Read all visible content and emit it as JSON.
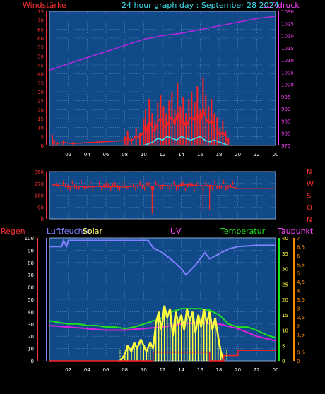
{
  "colors": {
    "background": "#000000",
    "plot_bg": "#114a88",
    "grid": "#6a8fc4",
    "frame": "#8fa8d0",
    "wind": "#ff2020",
    "gust": "#ff2020",
    "wind_low": "#40e0f0",
    "pressure": "#b428e0",
    "direction": "#ff2020",
    "rain": "#ff2020",
    "humidity": "#8080ff",
    "solar": "#ffff40",
    "uv": "#ffff40",
    "temperature": "#20e020",
    "dewpoint": "#e020e0",
    "red_tick": "#ff3030",
    "magenta_tick": "#ff40ff",
    "yellow_tick": "#ffff40"
  },
  "header": {
    "left_label": "Windstärke",
    "title": "24 hour graph day : September 28 2024",
    "right_label": "Luftdruck"
  },
  "x_ticks": [
    "02",
    "04",
    "06",
    "08",
    "10",
    "12",
    "14",
    "16",
    "18",
    "20",
    "22",
    "00"
  ],
  "chart_data": [
    {
      "type": "line",
      "panel": "wind_pressure",
      "y_left": {
        "label": "Windstärke",
        "ticks": [
          0,
          5,
          10,
          15,
          20,
          25,
          30,
          35,
          40,
          45,
          50,
          55,
          60,
          65,
          70,
          75
        ],
        "range": [
          0,
          75
        ]
      },
      "y_right": {
        "label": "Luftdruck",
        "ticks": [
          975,
          980,
          985,
          990,
          995,
          1000,
          1005,
          1010,
          1015,
          1020,
          1025,
          1030
        ],
        "range": [
          975,
          1030
        ]
      },
      "series": [
        {
          "name": "Luftdruck",
          "axis": "right",
          "x": [
            0,
            2,
            4,
            6,
            8,
            10,
            12,
            14,
            16,
            18,
            20,
            22,
            24
          ],
          "values": [
            1005.8,
            1008.5,
            1011,
            1013.5,
            1016,
            1018.5,
            1020,
            1021,
            1022.5,
            1024,
            1025.5,
            1027,
            1028
          ]
        },
        {
          "axis": "left",
          "style": "gust-spikes",
          "x": [
            0.3,
            0.5,
            0.8,
            1.5,
            2.5,
            8.0,
            8.3,
            8.7,
            9.2,
            9.6,
            10.0,
            10.2,
            10.4,
            10.6,
            10.9,
            11.2,
            11.5,
            11.8,
            12.1,
            12.4,
            12.7,
            13.0,
            13.3,
            13.6,
            13.9,
            14.2,
            14.5,
            14.8,
            15.1,
            15.4,
            15.7,
            16.0,
            16.3,
            16.6,
            16.9,
            17.2,
            17.5,
            17.8,
            18.1,
            18.4,
            18.7,
            19.0
          ],
          "values": [
            6,
            3,
            2,
            3,
            2,
            5,
            8,
            4,
            10,
            7,
            15,
            20,
            12,
            26,
            18,
            14,
            24,
            28,
            22,
            18,
            25,
            30,
            20,
            35,
            22,
            27,
            18,
            26,
            30,
            24,
            33,
            20,
            38,
            28,
            22,
            26,
            18,
            16,
            10,
            14,
            8,
            4
          ]
        },
        {
          "axis": "left",
          "style": "low-line",
          "x": [
            10.0,
            10.5,
            11,
            11.5,
            12,
            12.5,
            13,
            13.5,
            14,
            14.5,
            15,
            15.5,
            16,
            16.5,
            17,
            17.5,
            18,
            18.5,
            19
          ],
          "values": [
            0,
            1,
            2,
            4,
            3,
            5,
            4,
            3,
            5,
            4,
            3,
            4,
            5,
            3,
            2,
            3,
            2,
            1,
            0
          ]
        }
      ]
    },
    {
      "type": "line",
      "panel": "direction",
      "y_left": {
        "ticks": [
          0,
          90,
          180,
          270,
          360
        ],
        "range": [
          0,
          360
        ]
      },
      "y_right": {
        "ticks": [
          "N",
          "W",
          "S",
          "O",
          "N"
        ]
      },
      "series": [
        {
          "style": "direction",
          "x": [
            0.3,
            1,
            2,
            3,
            4,
            5,
            6,
            7,
            8,
            9,
            10,
            11,
            12,
            13,
            14,
            15,
            16,
            17,
            18,
            19,
            20,
            21,
            22,
            23,
            24
          ],
          "values": [
            260,
            255,
            245,
            250,
            240,
            248,
            242,
            245,
            240,
            250,
            252,
            248,
            255,
            250,
            258,
            260,
            250,
            255,
            248,
            250,
            230,
            230,
            230,
            230,
            230
          ]
        }
      ]
    },
    {
      "type": "line",
      "panel": "weather",
      "labels": {
        "regen": "Regen",
        "humidity": "Luftfeuchte",
        "solar": "Solar",
        "uv": "UV",
        "temperature": "Temperatur",
        "dewpoint": "Taupunkt"
      },
      "y_left": {
        "label": "Regen",
        "ticks": [
          0,
          10,
          20,
          30,
          40,
          50,
          60,
          70,
          80,
          90,
          100
        ],
        "range": [
          0,
          100
        ]
      },
      "y_right_temp": {
        "label": "Temperatur",
        "ticks": [
          0,
          5,
          10,
          15,
          20,
          25,
          30,
          35,
          40
        ],
        "range": [
          0,
          40
        ]
      },
      "y_right_uv": {
        "label": "UV",
        "ticks": [
          0,
          0.5,
          1,
          1.5,
          2,
          2.5,
          3,
          3.5,
          4,
          4.5,
          5,
          5.5,
          6,
          6.5,
          7
        ],
        "tick_labels": [
          "0",
          "0,5",
          "1",
          "1,5",
          "2",
          "2,5",
          "3",
          "3,5",
          "4",
          "4,5",
          "5",
          "5,5",
          "6",
          "6,5",
          "7"
        ],
        "range": [
          0,
          7
        ]
      },
      "series": [
        {
          "name": "Luftfeuchte",
          "axis": "left",
          "x": [
            0,
            1.3,
            1.5,
            1.8,
            2,
            4,
            6,
            8,
            10.5,
            11,
            12,
            13,
            14,
            14.5,
            15,
            15.5,
            16,
            16.5,
            17,
            18,
            19,
            20,
            22,
            24
          ],
          "values": [
            93,
            93,
            98,
            93,
            98,
            98,
            98,
            98,
            98,
            92,
            88,
            82,
            75,
            70,
            74,
            78,
            83,
            88,
            83,
            87,
            91,
            93,
            94,
            94
          ]
        },
        {
          "name": "Temperatur",
          "axis": "temp",
          "x": [
            0,
            1,
            2,
            3,
            4,
            5,
            6,
            7,
            8,
            9,
            10,
            11,
            12,
            13,
            14,
            15,
            16,
            17,
            18,
            19,
            20,
            21,
            22,
            23,
            24
          ],
          "values": [
            13,
            12.5,
            12,
            12,
            11.5,
            11.5,
            11,
            11,
            10.5,
            11,
            12,
            13,
            14,
            16,
            17,
            17,
            17,
            16.5,
            15,
            12,
            11,
            11,
            10,
            8.5,
            7.5
          ]
        },
        {
          "name": "Taupunkt",
          "axis": "temp",
          "x": [
            0,
            2,
            4,
            6,
            8,
            10,
            12,
            14,
            16,
            18,
            20,
            22,
            24
          ],
          "values": [
            11.5,
            11,
            10.5,
            10,
            10,
            10.5,
            11,
            12,
            12.5,
            12,
            10.5,
            8,
            6.5
          ]
        },
        {
          "name": "Solar",
          "axis": "temp",
          "style": "solar",
          "x": [
            7.5,
            8.0,
            8.3,
            8.7,
            9.0,
            9.3,
            9.7,
            10.0,
            10.3,
            10.7,
            11.0,
            11.3,
            11.6,
            11.9,
            12.2,
            12.5,
            12.8,
            13.1,
            13.4,
            13.7,
            14.0,
            14.3,
            14.6,
            14.9,
            15.2,
            15.5,
            15.8,
            16.1,
            16.4,
            16.7,
            17.0,
            17.3,
            17.6,
            17.9,
            18.2,
            18.5
          ],
          "values": [
            0,
            2,
            5,
            3,
            6,
            4,
            7,
            5,
            3,
            6,
            4,
            12,
            16,
            10,
            18,
            14,
            17,
            8,
            16,
            12,
            15,
            10,
            17,
            13,
            16,
            9,
            15,
            11,
            17,
            12,
            16,
            10,
            14,
            8,
            3,
            0
          ]
        },
        {
          "name": "UV",
          "axis": "uv",
          "style": "uv-steps",
          "x": [
            0,
            11,
            11,
            17,
            17,
            18.5,
            18.5,
            20,
            20,
            24
          ],
          "values": [
            0,
            0,
            0.5,
            0.5,
            0,
            0,
            0.3,
            0.3,
            0.6,
            0.6
          ]
        }
      ]
    }
  ]
}
